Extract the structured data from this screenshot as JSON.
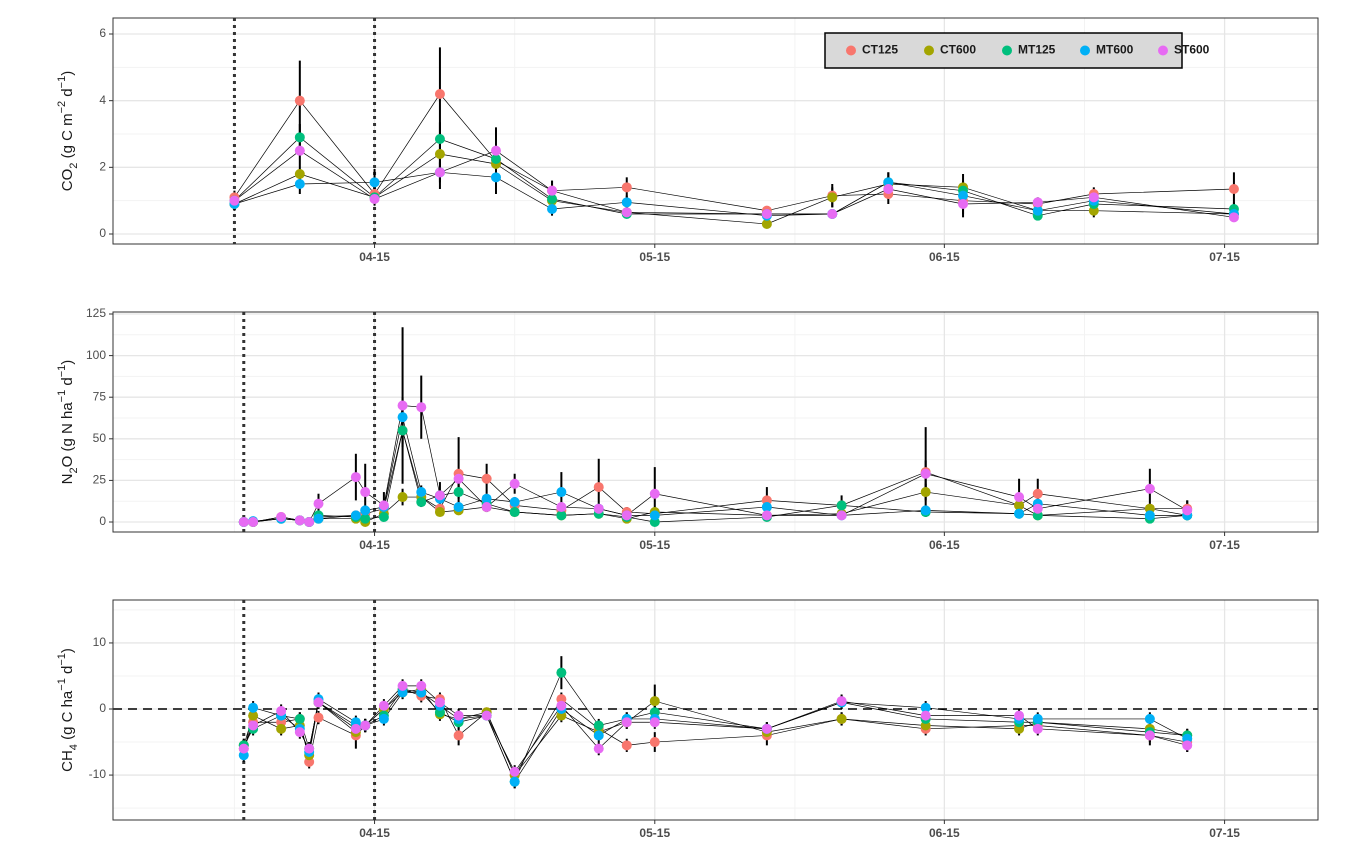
{
  "chart_data": [
    {
      "type": "line",
      "ylabel": [
        "CO",
        "2",
        " (g C m",
        "−2",
        " d",
        "−1",
        ")"
      ],
      "ylabel_styles": [
        "normal",
        "sub",
        "normal",
        "sup",
        "normal",
        "sup",
        "normal"
      ],
      "x": [
        "03-31",
        "04-07",
        "04-15",
        "04-22",
        "04-28",
        "05-04",
        "05-12",
        "05-27",
        "06-03",
        "06-09",
        "06-17",
        "06-25",
        "07-01",
        "07-16"
      ],
      "xlim": [
        "03-18",
        "07-25"
      ],
      "xticks": [
        "04-15",
        "05-15",
        "06-15",
        "07-15"
      ],
      "ylim": [
        -0.3,
        6.48
      ],
      "yticks": [
        0,
        2,
        4,
        6
      ],
      "grid": true,
      "vlines": [
        "03-31",
        "04-15"
      ],
      "legend": "top-right",
      "series": [
        {
          "name": "CT125",
          "color": "#F8766D",
          "values": [
            1.1,
            4.0,
            1.2,
            4.2,
            2.2,
            1.3,
            1.4,
            0.7,
            1.15,
            1.2,
            1.0,
            0.9,
            1.2,
            1.35
          ],
          "errors": [
            0.2,
            1.2,
            0.3,
            1.4,
            0.3,
            0.3,
            0.3,
            0.1,
            0.35,
            0.3,
            0.5,
            0.2,
            0.2,
            0.5
          ]
        },
        {
          "name": "CT600",
          "color": "#A3A500",
          "values": [
            0.9,
            1.8,
            1.1,
            2.4,
            2.1,
            1.0,
            0.65,
            0.3,
            1.1,
            1.5,
            1.4,
            0.7,
            0.7,
            0.6
          ],
          "errors": [
            0.2,
            0.3,
            0.2,
            0.4,
            0.3,
            0.2,
            0.1,
            0.1,
            0.3,
            0.2,
            0.4,
            0.2,
            0.2,
            0.1
          ]
        },
        {
          "name": "MT125",
          "color": "#00BF7D",
          "values": [
            1.0,
            2.9,
            1.1,
            2.85,
            2.25,
            1.05,
            0.6,
            0.6,
            0.6,
            1.55,
            1.3,
            0.55,
            0.9,
            0.75
          ],
          "errors": [
            0.2,
            0.4,
            0.2,
            0.5,
            0.3,
            0.2,
            0.1,
            0.1,
            0.1,
            0.3,
            0.3,
            0.1,
            0.2,
            0.2
          ]
        },
        {
          "name": "MT600",
          "color": "#00B0F6",
          "values": [
            0.9,
            1.5,
            1.55,
            1.85,
            1.7,
            0.75,
            0.95,
            0.55,
            0.6,
            1.55,
            1.15,
            0.7,
            1.0,
            0.6
          ],
          "errors": [
            0.2,
            0.3,
            0.4,
            0.3,
            0.5,
            0.2,
            0.2,
            0.1,
            0.1,
            0.3,
            0.3,
            0.1,
            0.2,
            0.1
          ]
        },
        {
          "name": "ST600",
          "color": "#E76BF3",
          "values": [
            1.0,
            2.5,
            1.05,
            1.85,
            2.5,
            1.3,
            0.65,
            0.6,
            0.6,
            1.35,
            0.9,
            0.95,
            1.1,
            0.5
          ],
          "errors": [
            0.2,
            0.4,
            0.2,
            0.5,
            0.7,
            0.3,
            0.1,
            0.1,
            0.1,
            0.2,
            0.3,
            0.1,
            0.1,
            0.1
          ]
        }
      ]
    },
    {
      "type": "line",
      "ylabel": [
        "N",
        "2",
        "O (g N ha",
        "−1",
        " d",
        "−1",
        ")"
      ],
      "ylabel_styles": [
        "normal",
        "sub",
        "normal",
        "sup",
        "normal",
        "sup",
        "normal"
      ],
      "x": [
        "04-01",
        "04-02",
        "04-05",
        "04-07",
        "04-08",
        "04-09",
        "04-13",
        "04-14",
        "04-16",
        "04-18",
        "04-20",
        "04-22",
        "04-24",
        "04-27",
        "04-30",
        "05-05",
        "05-09",
        "05-12",
        "05-15",
        "05-27",
        "06-04",
        "06-13",
        "06-23",
        "06-25",
        "07-07",
        "07-11"
      ],
      "xlim": [
        "03-18",
        "07-25"
      ],
      "xticks": [
        "04-15",
        "05-15",
        "06-15",
        "07-15"
      ],
      "ylim": [
        -6,
        126.2
      ],
      "yticks": [
        0,
        25,
        50,
        75,
        100,
        125
      ],
      "grid": true,
      "vlines": [
        "04-01",
        "04-15"
      ],
      "series": [
        {
          "color": "#F8766D",
          "values": [
            0,
            0,
            3,
            1,
            0,
            3,
            4,
            5,
            8,
            55,
            15,
            8,
            29,
            26,
            10,
            7,
            21,
            6,
            5,
            13,
            10,
            30,
            10,
            17,
            8,
            8
          ],
          "errors": [
            0,
            0,
            1,
            0,
            0,
            1,
            1,
            2,
            2,
            8,
            3,
            2,
            22,
            9,
            3,
            2,
            17,
            3,
            2,
            8,
            3,
            27,
            4,
            9,
            3,
            5
          ]
        },
        {
          "color": "#A3A500",
          "values": [
            0,
            0,
            2,
            1,
            0,
            2,
            2,
            0,
            5,
            15,
            15,
            6,
            7,
            9,
            6,
            4,
            5,
            2,
            6,
            4,
            5,
            18,
            10,
            4,
            8,
            4
          ],
          "errors": [
            0,
            0,
            1,
            0,
            0,
            1,
            1,
            1,
            1,
            5,
            3,
            1,
            2,
            3,
            1,
            1,
            2,
            1,
            2,
            1,
            1,
            5,
            2,
            1,
            2,
            1
          ]
        },
        {
          "color": "#00BF7D",
          "values": [
            0,
            0,
            2,
            1,
            0,
            4,
            3,
            2,
            3,
            55,
            12,
            16,
            18,
            11,
            6,
            4,
            5,
            3,
            0,
            3,
            10,
            6,
            5,
            4,
            2,
            4
          ],
          "errors": [
            0,
            0,
            1,
            0,
            0,
            1,
            1,
            1,
            1,
            10,
            3,
            3,
            4,
            3,
            1,
            1,
            2,
            1,
            1,
            1,
            6,
            2,
            1,
            1,
            1,
            1
          ]
        },
        {
          "color": "#00B0F6",
          "values": [
            0,
            0.5,
            2,
            1,
            0,
            2,
            4,
            7,
            9,
            63,
            18,
            14,
            9,
            14,
            12,
            18,
            8,
            4,
            4,
            9,
            4,
            7,
            5,
            11,
            4,
            4
          ],
          "errors": [
            0,
            0,
            1,
            0,
            0,
            1,
            1,
            2,
            2,
            12,
            4,
            3,
            2,
            3,
            3,
            12,
            2,
            1,
            1,
            2,
            1,
            2,
            1,
            2,
            1,
            1
          ]
        },
        {
          "color": "#E76BF3",
          "values": [
            0,
            0,
            3,
            1,
            0,
            11,
            27,
            18,
            10,
            70,
            69,
            16,
            26,
            9,
            23,
            9,
            8,
            4,
            17,
            4,
            4,
            29,
            15,
            8,
            20,
            7
          ],
          "errors": [
            0,
            0,
            1,
            0,
            0,
            6,
            14,
            17,
            8,
            47,
            19,
            8,
            5,
            3,
            6,
            2,
            3,
            1,
            16,
            2,
            1,
            8,
            11,
            2,
            12,
            6
          ]
        }
      ]
    },
    {
      "type": "line",
      "ylabel": [
        "CH",
        "4",
        " (g C ha",
        "−1",
        " d",
        "−1",
        ")"
      ],
      "ylabel_styles": [
        "normal",
        "sub",
        "normal",
        "sup",
        "normal",
        "sup",
        "normal"
      ],
      "x": [
        "04-01",
        "04-02",
        "04-05",
        "04-07",
        "04-08",
        "04-09",
        "04-13",
        "04-14",
        "04-16",
        "04-18",
        "04-20",
        "04-22",
        "04-24",
        "04-27",
        "04-30",
        "05-05",
        "05-09",
        "05-12",
        "05-15",
        "05-27",
        "06-04",
        "06-13",
        "06-23",
        "06-25",
        "07-07",
        "07-11"
      ],
      "xlim": [
        "03-18",
        "07-25"
      ],
      "xticks": [
        "04-15",
        "05-15",
        "06-15",
        "07-15"
      ],
      "ylim": [
        -16.8,
        16.5
      ],
      "yticks": [
        -10,
        0,
        10
      ],
      "grid": true,
      "vlines": [
        "04-01",
        "04-15"
      ],
      "hline": 0,
      "series": [
        {
          "color": "#F8766D",
          "values": [
            -6,
            -2,
            -2,
            -1.5,
            -8,
            -1.3,
            -4,
            -2.5,
            0,
            3,
            2,
            1.5,
            -4,
            -0.5,
            -10,
            1.5,
            -3,
            -5.5,
            -5,
            -4,
            -1.5,
            -3,
            -2.5,
            -2.5,
            -4,
            -5
          ],
          "errors": [
            1,
            1,
            1,
            1,
            1,
            1,
            2,
            1,
            1,
            1,
            1,
            1,
            1.5,
            0.5,
            1,
            1,
            1,
            1,
            1.5,
            1.5,
            1,
            1,
            1,
            1,
            1.5,
            1.5
          ]
        },
        {
          "color": "#A3A500",
          "values": [
            -5.5,
            -1,
            -3,
            -2.5,
            -7,
            1,
            -3.5,
            -2.5,
            0,
            2.5,
            3,
            -0.8,
            -1.5,
            -0.5,
            -10,
            -1,
            -3.5,
            -2,
            1.2,
            -3.5,
            -1.5,
            -2.5,
            -3,
            -2,
            -3,
            -4
          ],
          "errors": [
            1,
            1,
            1,
            1,
            1,
            1,
            1,
            1,
            1,
            1,
            1,
            1,
            1,
            0.5,
            1,
            1,
            1,
            1,
            2.5,
            1,
            1,
            1,
            1,
            1,
            1,
            1
          ]
        },
        {
          "color": "#00BF7D",
          "values": [
            -5.5,
            -3,
            -1,
            -1.5,
            -6,
            1,
            -2.5,
            -2.5,
            -1,
            3,
            2.5,
            -0.5,
            -2,
            -1,
            -11,
            5.5,
            -2.5,
            -1.5,
            -0.5,
            -3,
            1,
            -1.5,
            -2,
            -2,
            -3.5,
            -4
          ],
          "errors": [
            1,
            1,
            1,
            1,
            1,
            1,
            1,
            1,
            1,
            1,
            1,
            1,
            1,
            0.5,
            1,
            2.5,
            1,
            1,
            1,
            1,
            1,
            1,
            1,
            1,
            1,
            1
          ]
        },
        {
          "color": "#00B0F6",
          "values": [
            -7,
            0.2,
            -1,
            -3,
            -6.5,
            1.5,
            -2,
            -2.5,
            -1.5,
            2.5,
            2.5,
            0.5,
            -1.5,
            -1,
            -11,
            0,
            -4,
            -1.5,
            -1.5,
            -3,
            1,
            0.2,
            -1.5,
            -1.5,
            -1.5,
            -4.5
          ],
          "errors": [
            1,
            1,
            1,
            1,
            1,
            1,
            1,
            1,
            1,
            1,
            1,
            1,
            1,
            0.5,
            1,
            1,
            1,
            1,
            1,
            1,
            1,
            1,
            1,
            1,
            1,
            1
          ]
        },
        {
          "color": "#E76BF3",
          "values": [
            -6,
            -2.5,
            -0.3,
            -3.5,
            -6,
            1,
            -3,
            -2.5,
            0.5,
            3.5,
            3.5,
            1,
            -1,
            -1,
            -9.5,
            0.5,
            -6,
            -2,
            -2,
            -3,
            1.2,
            -1,
            -1,
            -3,
            -4,
            -5.5
          ],
          "errors": [
            1,
            1,
            1,
            1,
            1,
            1,
            1,
            1,
            1,
            1,
            1,
            1,
            1,
            0.5,
            1,
            1,
            1,
            1,
            1,
            1,
            1,
            1,
            1,
            1,
            1,
            1
          ]
        }
      ]
    }
  ]
}
